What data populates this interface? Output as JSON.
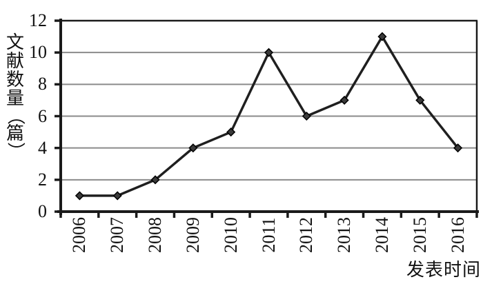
{
  "figure": {
    "background": "#ffffff"
  },
  "chart_data": {
    "type": "line",
    "title": "",
    "categories": [
      "2006",
      "2007",
      "2008",
      "2009",
      "2010",
      "2011",
      "2012",
      "2013",
      "2014",
      "2015",
      "2016"
    ],
    "series": [
      {
        "name": "文献数量",
        "values": [
          1,
          1,
          2,
          4,
          5,
          10,
          6,
          7,
          11,
          7,
          4
        ]
      }
    ],
    "xlabel": "发表时间",
    "ylabel": "文献数量（篇）",
    "yticks": [
      0,
      2,
      4,
      6,
      8,
      10,
      12
    ],
    "ylim": [
      0,
      12
    ],
    "grid": true,
    "legend_position": "none",
    "marker": "diamond",
    "colors": {
      "line": "#1f1f1f",
      "marker_fill": "#3a3a3a",
      "marker_stroke": "#000000",
      "grid": "#8a8a8a",
      "axis": "#1a1a1a",
      "text": "#111111"
    }
  }
}
